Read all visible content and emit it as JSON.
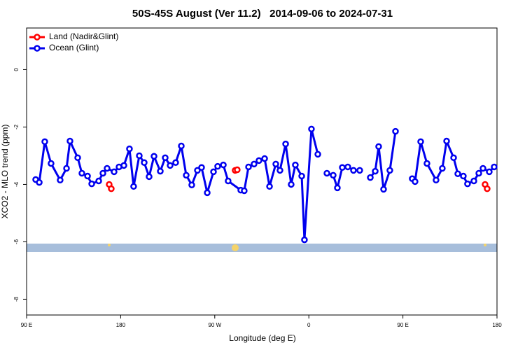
{
  "chart_data": {
    "type": "line",
    "title": "50S-45S August (Ver 11.2)   2014-09-06 to 2024-07-31",
    "x_label": "Longitude (deg E)",
    "y_label": "XCO2 - MLO trend (ppm)",
    "xlim": [
      90,
      540
    ],
    "xticks": [
      {
        "value": 90,
        "label": "90 E"
      },
      {
        "value": 180,
        "label": "180"
      },
      {
        "value": 270,
        "label": "90 W"
      },
      {
        "value": 360,
        "label": "0"
      },
      {
        "value": 450,
        "label": "90 E"
      },
      {
        "value": 540,
        "label": "180"
      }
    ],
    "ylim": [
      -8.55,
      1.45
    ],
    "yticks": [
      0,
      -2,
      -4,
      -6,
      -8
    ],
    "legend": "top-left",
    "series": [
      {
        "name": "Land (Nadir&Glint)",
        "color": "#ff0000",
        "x": [
          169.0,
          171.0,
          null,
          289.5,
          291.5,
          null,
          528.6,
          530.6
        ],
        "values": [
          -4.0,
          -4.15,
          null,
          -3.51,
          -3.49,
          null,
          -4.0,
          -4.15
        ]
      },
      {
        "name": "Ocean (Glint)",
        "color": "#0000ee",
        "x": [
          98.7,
          102.1,
          107.4,
          113.4,
          122.1,
          128.2,
          131.5,
          138.9,
          142.9,
          148.3,
          152.3,
          159.0,
          163.0,
          167.0,
          173.7,
          178.4,
          183.1,
          188.4,
          192.4,
          197.8,
          202.5,
          207.2,
          211.9,
          217.9,
          222.6,
          227.3,
          232.6,
          238.0,
          242.7,
          248.0,
          253.4,
          257.4,
          262.8,
          268.8,
          272.8,
          278.2,
          282.8,
          294.9,
          298.2,
          302.3,
          307.6,
          312.3,
          317.7,
          322.4,
          328.4,
          332.4,
          337.8,
          343.1,
          347.1,
          353.2,
          355.8,
          362.5,
          368.6,
          null,
          377.3,
          383.3,
          387.3,
          392.0,
          397.3,
          402.7,
          408.7,
          null,
          418.8,
          423.5,
          426.8,
          431.5,
          437.5,
          442.9,
          null,
          458.9,
          461.6,
          467.0,
          473.0,
          481.7,
          487.7,
          491.8,
          498.5,
          502.5,
          507.8,
          511.8,
          517.9,
          522.6,
          526.6,
          532.6,
          537.3
        ],
        "values": [
          -3.83,
          -3.93,
          -2.51,
          -3.27,
          -3.85,
          -3.44,
          -2.49,
          -3.07,
          -3.61,
          -3.71,
          -3.98,
          -3.88,
          -3.61,
          -3.44,
          -3.56,
          -3.39,
          -3.34,
          -2.76,
          -4.07,
          -3.0,
          -3.24,
          -3.73,
          -3.02,
          -3.54,
          -3.07,
          -3.34,
          -3.24,
          -2.66,
          -3.68,
          -4.02,
          -3.51,
          -3.41,
          -4.29,
          -3.56,
          -3.37,
          -3.32,
          -3.88,
          -4.2,
          -4.22,
          -3.39,
          -3.29,
          -3.17,
          -3.1,
          -4.07,
          -3.29,
          -3.51,
          -2.59,
          -4.0,
          -3.32,
          -3.71,
          -5.93,
          -2.07,
          -2.95,
          null,
          -3.61,
          -3.68,
          -4.12,
          -3.41,
          -3.39,
          -3.51,
          -3.51,
          null,
          -3.76,
          -3.54,
          -2.68,
          -4.17,
          -3.51,
          -2.15,
          null,
          -3.8,
          -3.9,
          -2.51,
          -3.27,
          -3.85,
          -3.44,
          -2.49,
          -3.07,
          -3.63,
          -3.71,
          -3.98,
          -3.88,
          -3.61,
          -3.44,
          -3.56,
          -3.39
        ]
      }
    ]
  }
}
